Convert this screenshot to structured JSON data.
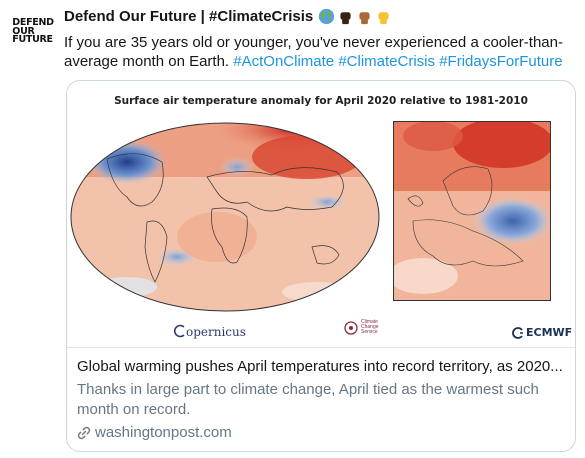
{
  "tweet": {
    "display_name": "Defend Our Future | #ClimateCrisis",
    "avatar_lines": [
      "DEFEND",
      "OUR",
      "FUTURE"
    ],
    "text_plain": "If you are 35 years old or younger, you've never experienced a cooler-than-average month on Earth. ",
    "hashtags": [
      "#ActOnClimate",
      "#ClimateCrisis",
      "#FridaysForFuture"
    ],
    "emoji_icons": [
      "globe-icon",
      "raised-fist-dark-icon",
      "raised-fist-medium-icon",
      "raised-fist-yellow-icon"
    ]
  },
  "card": {
    "image_title": "Surface air temperature anomaly for April 2020 relative to 1981-2010",
    "logos": {
      "copernicus": "opernicus",
      "c3s": "Climate Change Service",
      "ecmwf": "ECMWF"
    },
    "title": "Global warming pushes April temperatures into record territory, as 2020...",
    "description": "Thanks in large part to climate change, April tied as the warmest such month on record.",
    "domain": "washingtonpost.com"
  },
  "colors": {
    "link": "#1b95e0",
    "secondary_text": "#657786",
    "border": "#ccd6dd"
  }
}
